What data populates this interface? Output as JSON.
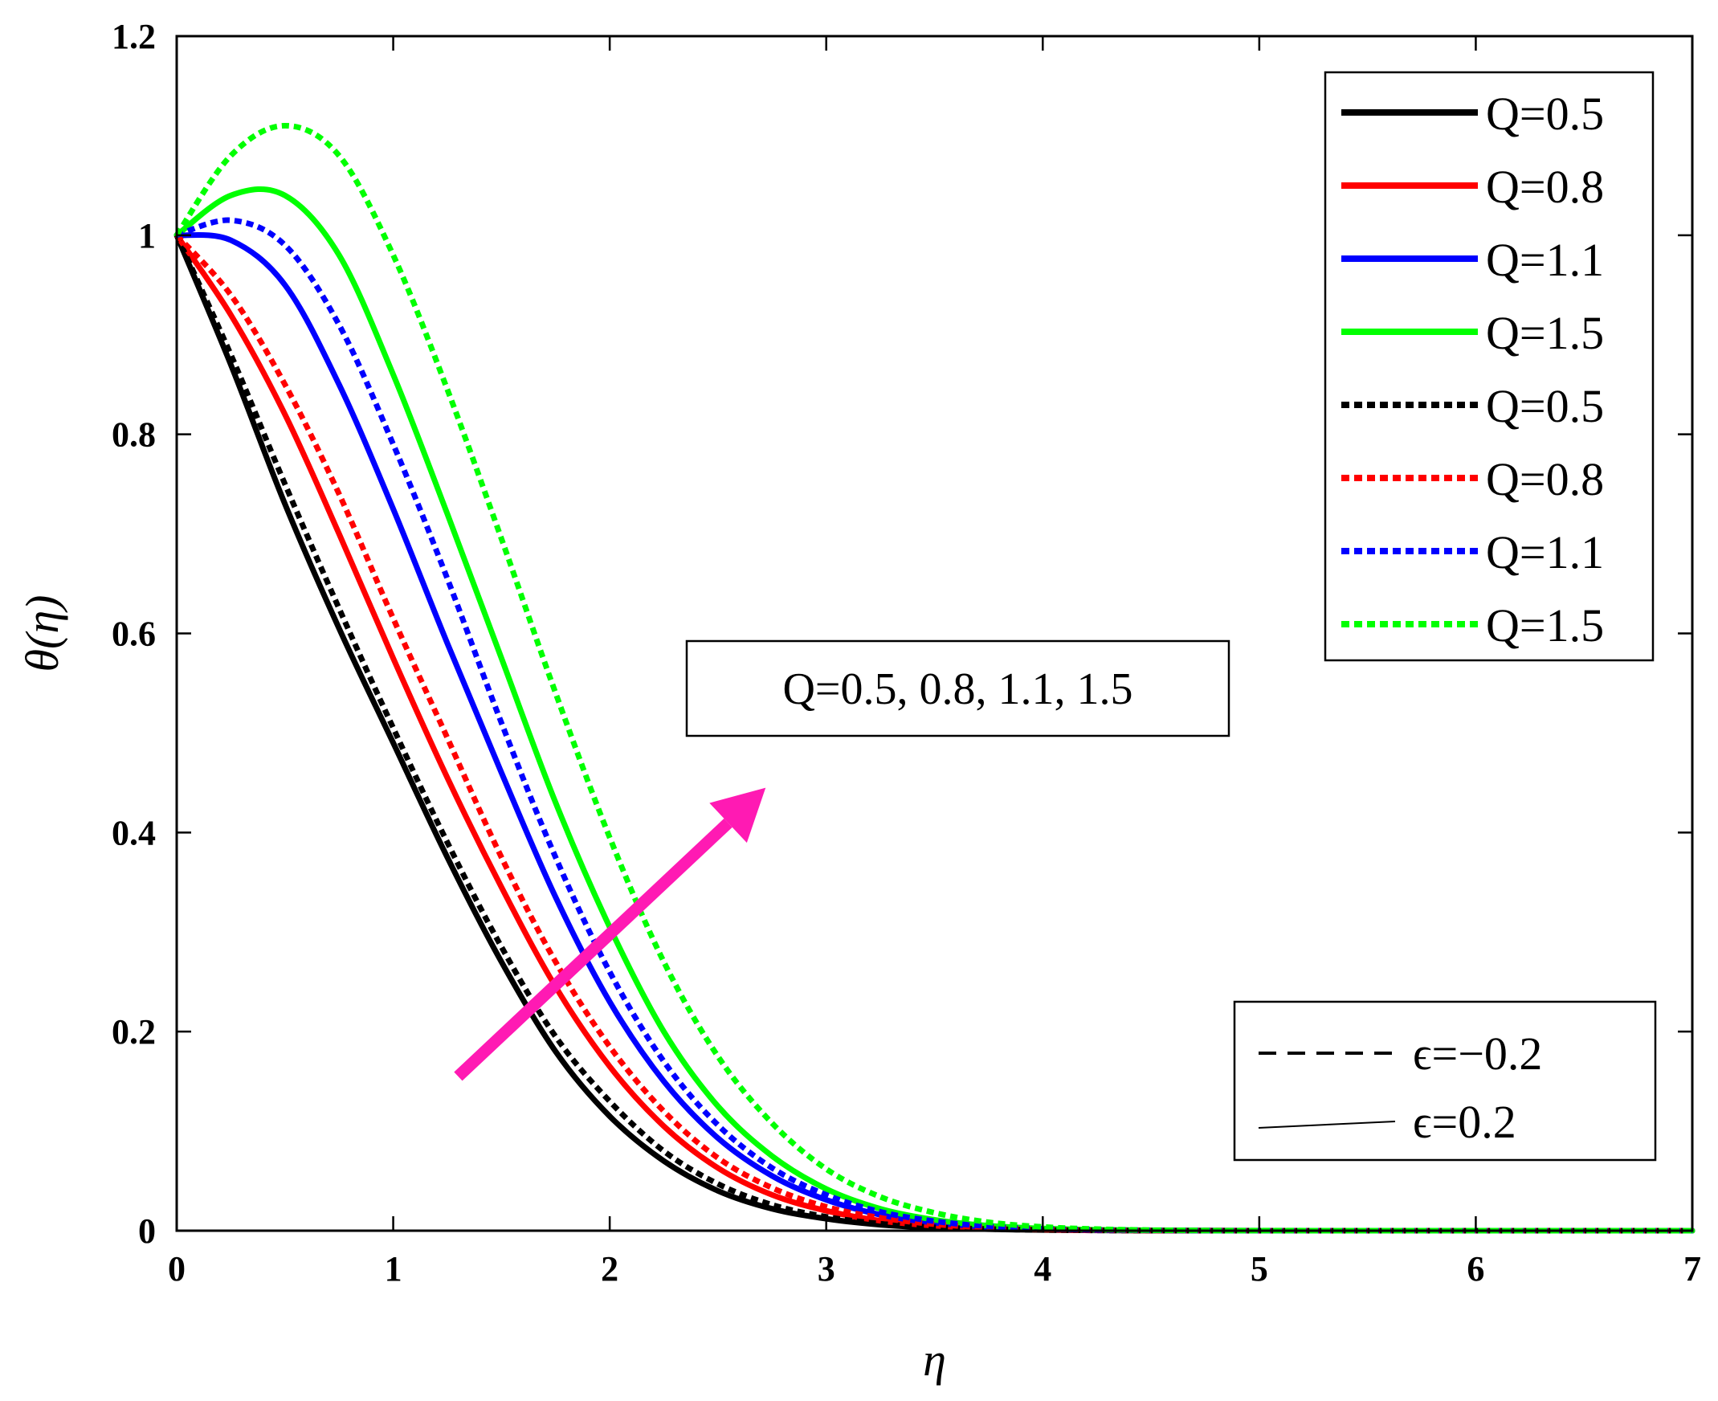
{
  "chart_data": {
    "type": "line",
    "xlabel": "η",
    "ylabel": "θ(η)",
    "xlim": [
      0,
      7
    ],
    "ylim": [
      0,
      1.2
    ],
    "x_ticks": [
      "0",
      "1",
      "2",
      "3",
      "4",
      "5",
      "6",
      "7"
    ],
    "y_ticks": [
      "0",
      "0.2",
      "0.4",
      "0.6",
      "0.8",
      "1",
      "1.2"
    ],
    "grid": false,
    "legend_position": "top-right",
    "x": [
      0,
      0.25,
      0.5,
      0.75,
      1,
      1.25,
      1.5,
      1.75,
      2,
      2.25,
      2.5,
      2.75,
      3,
      3.25,
      3.5,
      3.75,
      4,
      4.25,
      4.5,
      4.75,
      5,
      5.5,
      6,
      6.5,
      7
    ],
    "series": [
      {
        "name": "Q=0.5",
        "color": "#000000",
        "style": "solid",
        "values": [
          1.0,
          0.87,
          0.73,
          0.605,
          0.49,
          0.375,
          0.27,
          0.18,
          0.115,
          0.07,
          0.04,
          0.022,
          0.012,
          0.006,
          0.003,
          0.0015,
          0.0007,
          0.0003,
          0.0001,
          0.0,
          0.0,
          0.0,
          0.0,
          0.0,
          0.0
        ]
      },
      {
        "name": "Q=0.8",
        "color": "#ff0000",
        "style": "solid",
        "values": [
          1.0,
          0.92,
          0.82,
          0.7,
          0.575,
          0.455,
          0.345,
          0.245,
          0.165,
          0.105,
          0.063,
          0.036,
          0.02,
          0.01,
          0.005,
          0.0024,
          0.0011,
          0.0005,
          0.0002,
          0.0001,
          0.0,
          0.0,
          0.0,
          0.0,
          0.0
        ]
      },
      {
        "name": "Q=1.1",
        "color": "#0000ff",
        "style": "solid",
        "values": [
          1.0,
          0.995,
          0.95,
          0.85,
          0.725,
          0.59,
          0.46,
          0.335,
          0.23,
          0.15,
          0.093,
          0.055,
          0.031,
          0.016,
          0.008,
          0.0038,
          0.0017,
          0.0007,
          0.0003,
          0.0001,
          0.0,
          0.0,
          0.0,
          0.0,
          0.0
        ]
      },
      {
        "name": "Q=1.5",
        "color": "#00ff00",
        "style": "solid",
        "values": [
          1.0,
          1.04,
          1.04,
          0.98,
          0.86,
          0.72,
          0.575,
          0.43,
          0.305,
          0.2,
          0.125,
          0.075,
          0.042,
          0.022,
          0.011,
          0.005,
          0.0022,
          0.0009,
          0.0004,
          0.0001,
          0.0,
          0.0,
          0.0,
          0.0,
          0.0
        ]
      },
      {
        "name": "Q=0.5",
        "color": "#000000",
        "style": "dashed",
        "values": [
          1.0,
          0.88,
          0.75,
          0.625,
          0.505,
          0.39,
          0.285,
          0.195,
          0.13,
          0.08,
          0.047,
          0.026,
          0.014,
          0.007,
          0.0035,
          0.0017,
          0.0008,
          0.0003,
          0.0001,
          0.0,
          0.0,
          0.0,
          0.0,
          0.0,
          0.0
        ]
      },
      {
        "name": "Q=0.8",
        "color": "#ff0000",
        "style": "dashed",
        "values": [
          1.0,
          0.94,
          0.85,
          0.74,
          0.615,
          0.495,
          0.375,
          0.27,
          0.185,
          0.12,
          0.073,
          0.043,
          0.024,
          0.013,
          0.0065,
          0.0031,
          0.0014,
          0.0006,
          0.0002,
          0.0001,
          0.0,
          0.0,
          0.0,
          0.0,
          0.0
        ]
      },
      {
        "name": "Q=1.1",
        "color": "#0000ff",
        "style": "dashed",
        "values": [
          1.0,
          1.015,
          0.99,
          0.91,
          0.79,
          0.655,
          0.51,
          0.375,
          0.26,
          0.17,
          0.106,
          0.063,
          0.036,
          0.019,
          0.0095,
          0.0045,
          0.002,
          0.0009,
          0.0004,
          0.0001,
          0.0,
          0.0,
          0.0,
          0.0,
          0.0
        ]
      },
      {
        "name": "Q=1.5",
        "color": "#00ff00",
        "style": "dashed",
        "values": [
          1.0,
          1.08,
          1.11,
          1.08,
          0.98,
          0.845,
          0.695,
          0.54,
          0.395,
          0.27,
          0.175,
          0.108,
          0.062,
          0.034,
          0.018,
          0.0085,
          0.0038,
          0.0016,
          0.0006,
          0.0002,
          0.0001,
          0.0,
          0.0,
          0.0,
          0.0
        ]
      }
    ],
    "annotations": {
      "param_box_text": "Q=0.5, 0.8, 1.1, 1.5",
      "arrow_color": "#ff1ab3",
      "arrow_from": [
        1.3,
        0.155
      ],
      "arrow_to": [
        2.72,
        0.445
      ],
      "style_legend": [
        {
          "label": "ϵ=−0.2",
          "style": "dashed"
        },
        {
          "label": "ϵ=0.2",
          "style": "solid"
        }
      ]
    }
  }
}
